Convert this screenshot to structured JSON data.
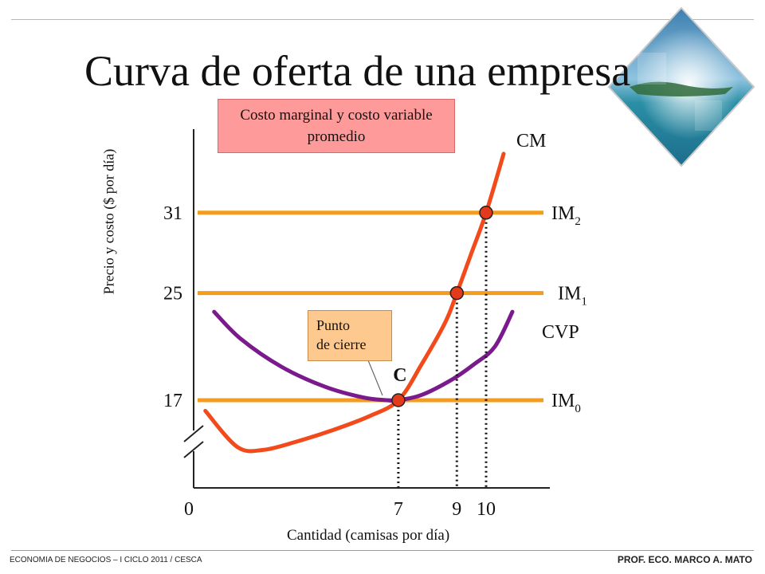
{
  "slide": {
    "title": "Curva de oferta de una empresa",
    "footer_left": "ECONOMIA DE NEGOCIOS – I CICLO 2011 / CESCA",
    "footer_right": "PROF. ECO. MARCO  A. MATO"
  },
  "colors": {
    "cm": "#f24a1a",
    "cvp": "#7b1a8c",
    "im": "#f39c1f",
    "point": "#e23a1a",
    "highlight": "#e8542a",
    "legend_bg": "#ff9a9a",
    "callout_bg": "#fdc98e"
  },
  "chart_data": {
    "type": "line",
    "title": "",
    "legend_box": "Costo marginal y costo variable promedio",
    "xlabel": "Cantidad (camisas por día)",
    "ylabel": "Precio y costo ($ por día)",
    "x_ticks": [
      {
        "value": 0,
        "label": "0"
      },
      {
        "value": 7,
        "label": "7",
        "highlight": true
      },
      {
        "value": 9,
        "label": "9"
      },
      {
        "value": 10,
        "label": "10"
      }
    ],
    "y_ticks": [
      {
        "value": 17,
        "label": "17",
        "highlight": true
      },
      {
        "value": 25,
        "label": "25"
      },
      {
        "value": 31,
        "label": "31"
      }
    ],
    "axis_break": true,
    "series": [
      {
        "name": "CM",
        "color": "#f24a1a",
        "points": [
          [
            0.4,
            16.2
          ],
          [
            1.5,
            13.5
          ],
          [
            2.4,
            13.3
          ],
          [
            3.5,
            13.9
          ],
          [
            4.8,
            14.8
          ],
          [
            6.0,
            15.8
          ],
          [
            7.0,
            17.0
          ],
          [
            7.8,
            19.7
          ],
          [
            8.6,
            22.8
          ],
          [
            9.0,
            25.0
          ],
          [
            9.5,
            28.0
          ],
          [
            10.0,
            31.0
          ],
          [
            10.6,
            35.4
          ]
        ]
      },
      {
        "name": "CVP",
        "color": "#7b1a8c",
        "points": [
          [
            0.7,
            23.6
          ],
          [
            1.6,
            21.6
          ],
          [
            3.0,
            19.5
          ],
          [
            4.5,
            18.0
          ],
          [
            5.8,
            17.2
          ],
          [
            6.6,
            17.0
          ],
          [
            7.0,
            17.0
          ],
          [
            7.8,
            17.4
          ],
          [
            8.8,
            18.5
          ],
          [
            9.6,
            19.7
          ],
          [
            10.3,
            21.0
          ],
          [
            10.9,
            23.6
          ]
        ]
      },
      {
        "name": "IM0",
        "label_main": "IM",
        "label_sub": "0",
        "color": "#f39c1f",
        "points": [
          [
            0,
            17
          ],
          [
            11.5,
            17
          ]
        ]
      },
      {
        "name": "IM1",
        "label_main": "IM",
        "label_sub": "1",
        "color": "#f39c1f",
        "points": [
          [
            0,
            25
          ],
          [
            11.5,
            25
          ]
        ]
      },
      {
        "name": "IM2",
        "label_main": "IM",
        "label_sub": "2",
        "color": "#f39c1f",
        "points": [
          [
            0,
            31
          ],
          [
            11.5,
            31
          ]
        ]
      }
    ],
    "points": [
      {
        "x": 7,
        "y": 17,
        "label": "C"
      },
      {
        "x": 9,
        "y": 25
      },
      {
        "x": 10,
        "y": 31
      }
    ],
    "callout": {
      "text_line1": "Punto",
      "text_line2": "de cierre",
      "points_to": "C"
    }
  }
}
